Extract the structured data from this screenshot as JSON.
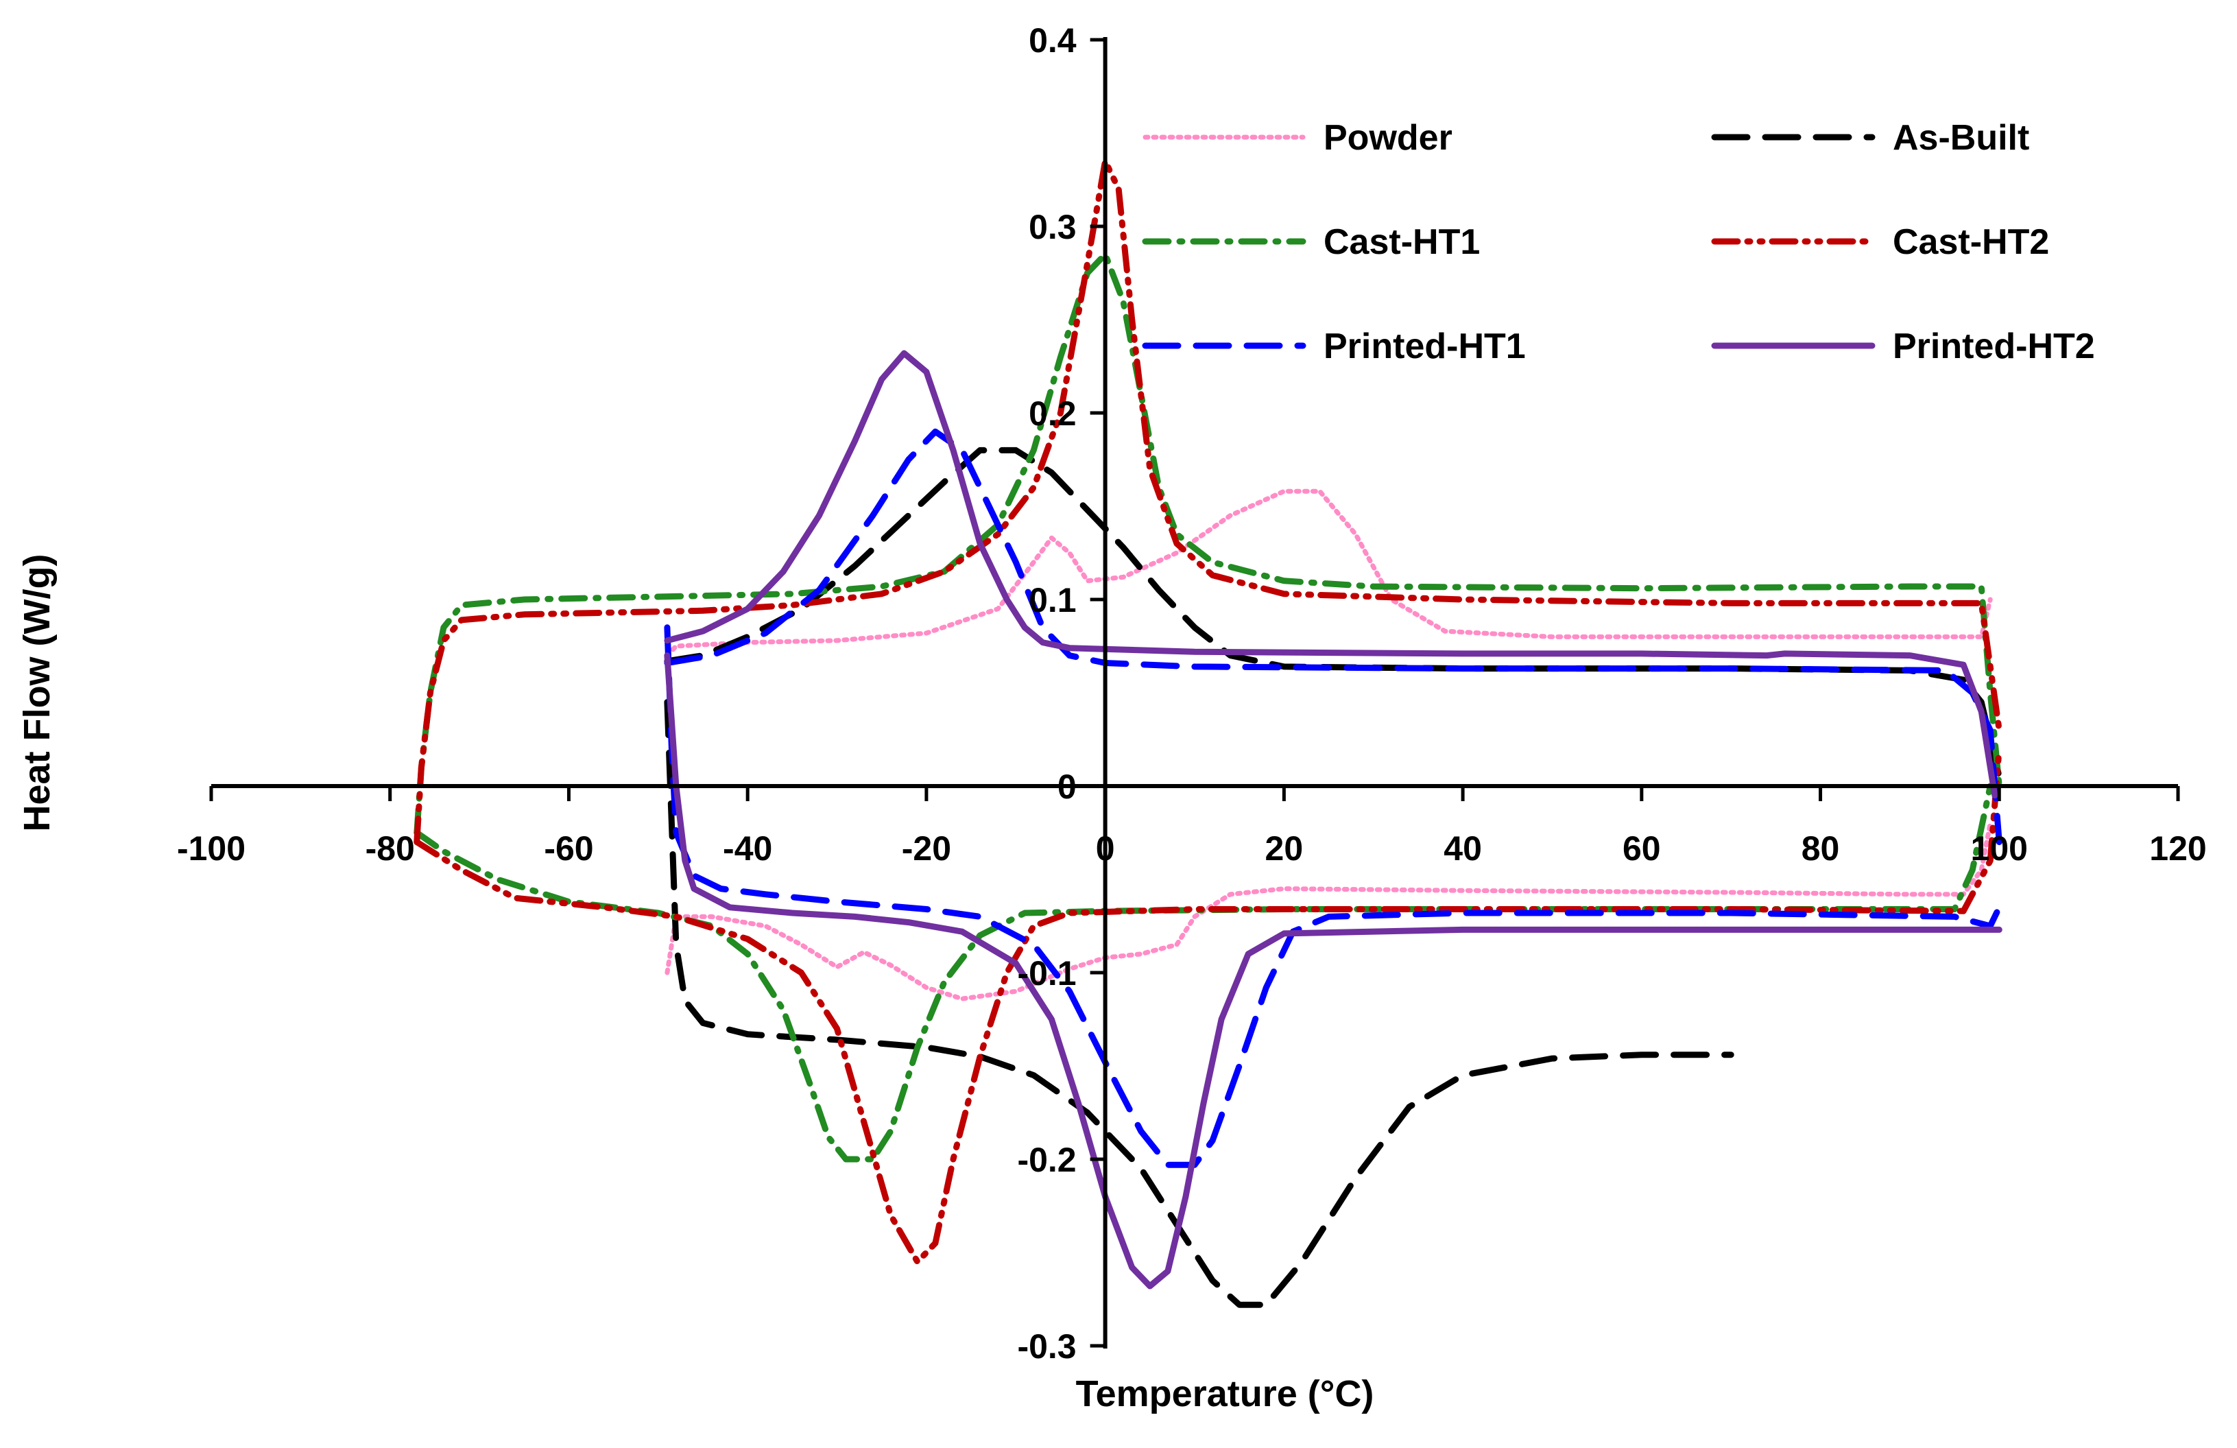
{
  "chart_data": {
    "type": "line",
    "title": "",
    "xlabel": "Temperature (°C)",
    "ylabel": "Heat Flow (W/g)",
    "xlim": [
      -100,
      120
    ],
    "ylim": [
      -0.3,
      0.4
    ],
    "x_ticks": [
      -100,
      -80,
      -60,
      -40,
      -20,
      0,
      20,
      40,
      60,
      80,
      100,
      120
    ],
    "y_ticks": [
      0.4,
      0.3,
      0.2,
      0.1,
      0,
      -0.1,
      -0.2,
      -0.3
    ],
    "x_tick_labels": [
      "-100",
      "-80",
      "-60",
      "-40",
      "-20",
      "0",
      "20",
      "40",
      "60",
      "80",
      "100",
      "120"
    ],
    "y_tick_labels": [
      "0.4",
      "0.3",
      "0.2",
      "0.1",
      "0",
      "-0.1",
      "-0.2",
      "-0.3"
    ],
    "grid": false,
    "legend": "top-right, two columns inside plot",
    "series": [
      {
        "name": "Powder",
        "color": "#ff8cc6",
        "style": "dotted",
        "cooling": [
          [
            -49,
            0.07
          ],
          [
            -48,
            0.075
          ],
          [
            -40,
            0.077
          ],
          [
            -30,
            0.078
          ],
          [
            -20,
            0.082
          ],
          [
            -12,
            0.095
          ],
          [
            -8,
            0.12
          ],
          [
            -6,
            0.133
          ],
          [
            -4,
            0.125
          ],
          [
            -2,
            0.11
          ],
          [
            2,
            0.112
          ],
          [
            8,
            0.125
          ],
          [
            14,
            0.145
          ],
          [
            20,
            0.158
          ],
          [
            24,
            0.158
          ],
          [
            28,
            0.135
          ],
          [
            32,
            0.1
          ],
          [
            38,
            0.083
          ],
          [
            50,
            0.08
          ],
          [
            70,
            0.08
          ],
          [
            90,
            0.08
          ],
          [
            98,
            0.08
          ],
          [
            99,
            0.1
          ]
        ],
        "heating": [
          [
            -49,
            -0.1
          ],
          [
            -48,
            -0.07
          ],
          [
            -44,
            -0.07
          ],
          [
            -38,
            -0.075
          ],
          [
            -34,
            -0.085
          ],
          [
            -30,
            -0.097
          ],
          [
            -27,
            -0.089
          ],
          [
            -24,
            -0.096
          ],
          [
            -20,
            -0.108
          ],
          [
            -16,
            -0.114
          ],
          [
            -10,
            -0.11
          ],
          [
            -4,
            -0.098
          ],
          [
            0,
            -0.092
          ],
          [
            4,
            -0.09
          ],
          [
            8,
            -0.085
          ],
          [
            10,
            -0.07
          ],
          [
            14,
            -0.058
          ],
          [
            20,
            -0.055
          ],
          [
            40,
            -0.056
          ],
          [
            70,
            -0.057
          ],
          [
            90,
            -0.058
          ],
          [
            96,
            -0.058
          ],
          [
            98,
            -0.045
          ],
          [
            99,
            -0.02
          ]
        ]
      },
      {
        "name": "As-Built",
        "color": "#000000",
        "style": "long-dash",
        "cooling": [
          [
            -49,
            0.067
          ],
          [
            -45,
            0.07
          ],
          [
            -40,
            0.08
          ],
          [
            -34,
            0.095
          ],
          [
            -28,
            0.118
          ],
          [
            -22,
            0.145
          ],
          [
            -18,
            0.163
          ],
          [
            -14,
            0.18
          ],
          [
            -10,
            0.18
          ],
          [
            -6,
            0.168
          ],
          [
            -2,
            0.148
          ],
          [
            2,
            0.128
          ],
          [
            6,
            0.105
          ],
          [
            10,
            0.085
          ],
          [
            14,
            0.07
          ],
          [
            20,
            0.064
          ],
          [
            40,
            0.063
          ],
          [
            70,
            0.063
          ],
          [
            90,
            0.062
          ],
          [
            96,
            0.057
          ],
          [
            98,
            0.045
          ],
          [
            100,
            0.005
          ]
        ],
        "heating": [
          [
            -49,
            0.045
          ],
          [
            -48.5,
            -0.02
          ],
          [
            -48,
            -0.085
          ],
          [
            -47,
            -0.115
          ],
          [
            -45,
            -0.127
          ],
          [
            -40,
            -0.133
          ],
          [
            -30,
            -0.136
          ],
          [
            -20,
            -0.14
          ],
          [
            -14,
            -0.145
          ],
          [
            -8,
            -0.155
          ],
          [
            -2,
            -0.175
          ],
          [
            4,
            -0.205
          ],
          [
            8,
            -0.235
          ],
          [
            12,
            -0.265
          ],
          [
            15,
            -0.278
          ],
          [
            18,
            -0.278
          ],
          [
            22,
            -0.255
          ],
          [
            28,
            -0.21
          ],
          [
            34,
            -0.172
          ],
          [
            40,
            -0.155
          ],
          [
            50,
            -0.146
          ],
          [
            60,
            -0.144
          ],
          [
            70,
            -0.144
          ]
        ]
      },
      {
        "name": "Cast-HT1",
        "color": "#228b22",
        "style": "dash-dot",
        "cooling": [
          [
            -77,
            -0.025
          ],
          [
            -76.5,
            0.01
          ],
          [
            -75.5,
            0.05
          ],
          [
            -74,
            0.085
          ],
          [
            -72,
            0.097
          ],
          [
            -65,
            0.1
          ],
          [
            -55,
            0.101
          ],
          [
            -45,
            0.102
          ],
          [
            -35,
            0.103
          ],
          [
            -25,
            0.107
          ],
          [
            -18,
            0.115
          ],
          [
            -12,
            0.14
          ],
          [
            -8,
            0.18
          ],
          [
            -5,
            0.23
          ],
          [
            -2,
            0.275
          ],
          [
            0,
            0.285
          ],
          [
            2,
            0.26
          ],
          [
            4,
            0.21
          ],
          [
            6,
            0.16
          ],
          [
            8,
            0.135
          ],
          [
            12,
            0.12
          ],
          [
            20,
            0.11
          ],
          [
            30,
            0.107
          ],
          [
            60,
            0.106
          ],
          [
            90,
            0.107
          ],
          [
            98,
            0.107
          ],
          [
            99,
            0.05
          ],
          [
            100,
            0.0
          ]
        ],
        "heating": [
          [
            -77,
            -0.025
          ],
          [
            -74,
            -0.035
          ],
          [
            -68,
            -0.05
          ],
          [
            -60,
            -0.062
          ],
          [
            -50,
            -0.068
          ],
          [
            -44,
            -0.075
          ],
          [
            -40,
            -0.09
          ],
          [
            -36,
            -0.12
          ],
          [
            -33,
            -0.16
          ],
          [
            -31,
            -0.188
          ],
          [
            -29,
            -0.2
          ],
          [
            -26,
            -0.2
          ],
          [
            -24,
            -0.185
          ],
          [
            -21,
            -0.14
          ],
          [
            -18,
            -0.105
          ],
          [
            -14,
            -0.08
          ],
          [
            -9,
            -0.068
          ],
          [
            0,
            -0.067
          ],
          [
            20,
            -0.066
          ],
          [
            50,
            -0.066
          ],
          [
            80,
            -0.066
          ],
          [
            95,
            -0.066
          ],
          [
            97,
            -0.045
          ],
          [
            99,
            0.0
          ]
        ]
      },
      {
        "name": "Cast-HT2",
        "color": "#c00000",
        "style": "dash-dot-dot",
        "cooling": [
          [
            -77,
            -0.03
          ],
          [
            -76.5,
            0.01
          ],
          [
            -75.5,
            0.05
          ],
          [
            -74,
            0.078
          ],
          [
            -72,
            0.089
          ],
          [
            -65,
            0.092
          ],
          [
            -55,
            0.093
          ],
          [
            -45,
            0.094
          ],
          [
            -35,
            0.097
          ],
          [
            -25,
            0.103
          ],
          [
            -18,
            0.115
          ],
          [
            -12,
            0.135
          ],
          [
            -8,
            0.16
          ],
          [
            -5,
            0.2
          ],
          [
            -2,
            0.28
          ],
          [
            0,
            0.335
          ],
          [
            1.5,
            0.32
          ],
          [
            3,
            0.25
          ],
          [
            5,
            0.17
          ],
          [
            8,
            0.13
          ],
          [
            12,
            0.113
          ],
          [
            20,
            0.103
          ],
          [
            40,
            0.1
          ],
          [
            70,
            0.098
          ],
          [
            98,
            0.098
          ],
          [
            100,
            0.03
          ]
        ],
        "heating": [
          [
            -77,
            -0.03
          ],
          [
            -72,
            -0.045
          ],
          [
            -66,
            -0.06
          ],
          [
            -56,
            -0.065
          ],
          [
            -48,
            -0.07
          ],
          [
            -40,
            -0.082
          ],
          [
            -34,
            -0.1
          ],
          [
            -30,
            -0.13
          ],
          [
            -27,
            -0.18
          ],
          [
            -24,
            -0.23
          ],
          [
            -21,
            -0.255
          ],
          [
            -19,
            -0.245
          ],
          [
            -17,
            -0.2
          ],
          [
            -14,
            -0.145
          ],
          [
            -11,
            -0.1
          ],
          [
            -8,
            -0.075
          ],
          [
            -4,
            -0.068
          ],
          [
            10,
            -0.066
          ],
          [
            40,
            -0.066
          ],
          [
            70,
            -0.066
          ],
          [
            96,
            -0.067
          ],
          [
            99,
            -0.04
          ],
          [
            100,
            0.02
          ]
        ]
      },
      {
        "name": "Printed-HT1",
        "color": "#0000ff",
        "style": "long-dash",
        "cooling": [
          [
            -49,
            0.066
          ],
          [
            -44,
            0.07
          ],
          [
            -38,
            0.082
          ],
          [
            -32,
            0.105
          ],
          [
            -26,
            0.145
          ],
          [
            -22,
            0.175
          ],
          [
            -19,
            0.19
          ],
          [
            -16,
            0.18
          ],
          [
            -13,
            0.15
          ],
          [
            -10,
            0.12
          ],
          [
            -7,
            0.085
          ],
          [
            -4,
            0.07
          ],
          [
            0,
            0.066
          ],
          [
            10,
            0.064
          ],
          [
            40,
            0.063
          ],
          [
            70,
            0.063
          ],
          [
            94,
            0.062
          ],
          [
            97,
            0.05
          ],
          [
            99,
            0.03
          ],
          [
            100,
            -0.03
          ]
        ],
        "heating": [
          [
            -49,
            0.085
          ],
          [
            -48.5,
            0.02
          ],
          [
            -48,
            -0.025
          ],
          [
            -46,
            -0.048
          ],
          [
            -43,
            -0.055
          ],
          [
            -38,
            -0.058
          ],
          [
            -30,
            -0.062
          ],
          [
            -20,
            -0.066
          ],
          [
            -14,
            -0.07
          ],
          [
            -8,
            -0.085
          ],
          [
            -4,
            -0.11
          ],
          [
            0,
            -0.148
          ],
          [
            4,
            -0.185
          ],
          [
            7,
            -0.203
          ],
          [
            10,
            -0.203
          ],
          [
            12,
            -0.19
          ],
          [
            15,
            -0.15
          ],
          [
            18,
            -0.108
          ],
          [
            21,
            -0.078
          ],
          [
            25,
            -0.07
          ],
          [
            40,
            -0.068
          ],
          [
            70,
            -0.068
          ],
          [
            95,
            -0.07
          ],
          [
            99,
            -0.075
          ],
          [
            100,
            -0.065
          ]
        ]
      },
      {
        "name": "Printed-HT2",
        "color": "#7030a0",
        "style": "solid",
        "cooling": [
          [
            -49,
            0.078
          ],
          [
            -45,
            0.083
          ],
          [
            -40,
            0.095
          ],
          [
            -36,
            0.115
          ],
          [
            -32,
            0.145
          ],
          [
            -28,
            0.185
          ],
          [
            -25,
            0.218
          ],
          [
            -22.5,
            0.232
          ],
          [
            -20,
            0.222
          ],
          [
            -17,
            0.18
          ],
          [
            -14,
            0.13
          ],
          [
            -11,
            0.1
          ],
          [
            -9,
            0.085
          ],
          [
            -7,
            0.077
          ],
          [
            -4,
            0.074
          ],
          [
            10,
            0.072
          ],
          [
            40,
            0.071
          ],
          [
            60,
            0.071
          ],
          [
            74,
            0.07
          ],
          [
            76,
            0.071
          ],
          [
            90,
            0.07
          ],
          [
            96,
            0.065
          ],
          [
            98,
            0.04
          ],
          [
            99.5,
            -0.005
          ]
        ],
        "heating": [
          [
            -49,
            0.07
          ],
          [
            -48,
            0.0
          ],
          [
            -47,
            -0.04
          ],
          [
            -46,
            -0.055
          ],
          [
            -42,
            -0.065
          ],
          [
            -35,
            -0.068
          ],
          [
            -28,
            -0.07
          ],
          [
            -22,
            -0.073
          ],
          [
            -16,
            -0.078
          ],
          [
            -10,
            -0.095
          ],
          [
            -6,
            -0.125
          ],
          [
            -3,
            -0.17
          ],
          [
            0,
            -0.22
          ],
          [
            3,
            -0.258
          ],
          [
            5,
            -0.268
          ],
          [
            7,
            -0.26
          ],
          [
            9,
            -0.22
          ],
          [
            11,
            -0.17
          ],
          [
            13,
            -0.125
          ],
          [
            16,
            -0.09
          ],
          [
            20,
            -0.079
          ],
          [
            40,
            -0.077
          ],
          [
            70,
            -0.077
          ],
          [
            100,
            -0.077
          ]
        ]
      }
    ]
  }
}
